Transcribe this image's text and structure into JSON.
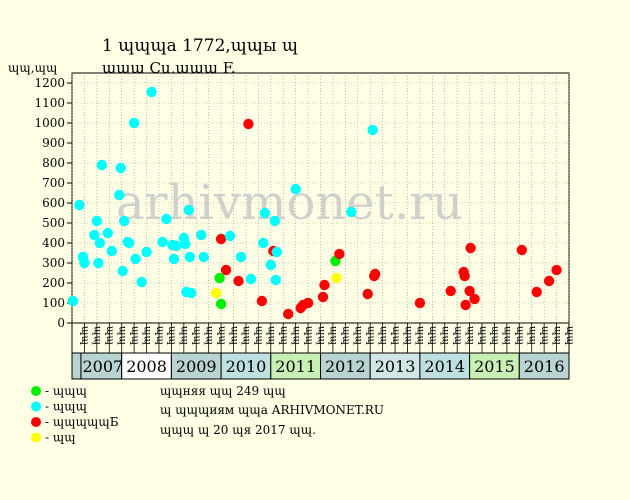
{
  "chart_data": {
    "type": "scatter",
    "title_line1": "1 ɰɰɰa 1772,ɰɰы ɰ",
    "title_line2": "ɰɰɰ Cu,ɰɰɰ F.",
    "ylabel": "ɰɰ,ɰɰ",
    "ylim": [
      0,
      1250
    ],
    "yticks": [
      0,
      100,
      200,
      300,
      400,
      500,
      600,
      700,
      800,
      900,
      1000,
      1100,
      1200
    ],
    "grid": true,
    "watermark": "arhivmonet.ru",
    "years": [
      "2007",
      "2008",
      "2009",
      "2010",
      "2011",
      "2012",
      "2013",
      "2014",
      "2015",
      "2016"
    ],
    "year_colors": [
      "#b9d2d2",
      "#ffffff",
      "#b9d2d2",
      "#bfe0e0",
      "#c8f0b4",
      "#b9d2d2",
      "#d2e6e6",
      "#bfe0e0",
      "#c8f0b4",
      "#b9d2d2"
    ],
    "sub_labels": [
      "ɰɰ",
      "ɰɰ",
      "ɰɰ",
      "ɰɰ"
    ],
    "legend": [
      {
        "color": "#00ee00",
        "label": "- ɰɰɰ"
      },
      {
        "color": "#00ffff",
        "label": "- ɰɰɰ"
      },
      {
        "color": "#ff0000",
        "label": "- ɰɰɰɰɰБ"
      },
      {
        "color": "#ffff00",
        "label": "- ɰɰ"
      }
    ],
    "info": [
      "ɰɰняя ɰɰ 249 ɰɰ",
      "ɰ ɰɰɰиям ɰɰa ARHIVMONET.RU",
      "ɰɰɰ ɰ 20 ɰя 2017 ɰɰ."
    ],
    "colors": {
      "cyan": "#00ffff",
      "red": "#ff0000",
      "green": "#00ee00",
      "yellow": "#ffff00"
    },
    "points": [
      {
        "t": 2007.02,
        "v": 110,
        "c": "cyan"
      },
      {
        "t": 2007.15,
        "v": 590,
        "c": "cyan"
      },
      {
        "t": 2007.22,
        "v": 330,
        "c": "cyan"
      },
      {
        "t": 2007.25,
        "v": 300,
        "c": "cyan"
      },
      {
        "t": 2007.45,
        "v": 440,
        "c": "cyan"
      },
      {
        "t": 2007.5,
        "v": 510,
        "c": "cyan"
      },
      {
        "t": 2007.53,
        "v": 300,
        "c": "cyan"
      },
      {
        "t": 2007.56,
        "v": 400,
        "c": "cyan"
      },
      {
        "t": 2007.6,
        "v": 790,
        "c": "cyan"
      },
      {
        "t": 2007.72,
        "v": 450,
        "c": "cyan"
      },
      {
        "t": 2007.8,
        "v": 360,
        "c": "cyan"
      },
      {
        "t": 2007.95,
        "v": 640,
        "c": "cyan"
      },
      {
        "t": 2007.98,
        "v": 775,
        "c": "cyan"
      },
      {
        "t": 2008.02,
        "v": 260,
        "c": "cyan"
      },
      {
        "t": 2008.05,
        "v": 510,
        "c": "cyan"
      },
      {
        "t": 2008.12,
        "v": 405,
        "c": "cyan"
      },
      {
        "t": 2008.15,
        "v": 400,
        "c": "cyan"
      },
      {
        "t": 2008.25,
        "v": 1000,
        "c": "cyan"
      },
      {
        "t": 2008.28,
        "v": 320,
        "c": "cyan"
      },
      {
        "t": 2008.4,
        "v": 205,
        "c": "cyan"
      },
      {
        "t": 2008.5,
        "v": 355,
        "c": "cyan"
      },
      {
        "t": 2008.6,
        "v": 1155,
        "c": "cyan"
      },
      {
        "t": 2008.82,
        "v": 405,
        "c": "cyan"
      },
      {
        "t": 2008.9,
        "v": 520,
        "c": "cyan"
      },
      {
        "t": 2009.02,
        "v": 390,
        "c": "cyan"
      },
      {
        "t": 2009.05,
        "v": 320,
        "c": "cyan"
      },
      {
        "t": 2009.1,
        "v": 385,
        "c": "cyan"
      },
      {
        "t": 2009.25,
        "v": 425,
        "c": "cyan"
      },
      {
        "t": 2009.28,
        "v": 395,
        "c": "cyan"
      },
      {
        "t": 2009.3,
        "v": 155,
        "c": "cyan"
      },
      {
        "t": 2009.35,
        "v": 565,
        "c": "cyan"
      },
      {
        "t": 2009.37,
        "v": 330,
        "c": "cyan"
      },
      {
        "t": 2009.4,
        "v": 150,
        "c": "cyan"
      },
      {
        "t": 2009.6,
        "v": 440,
        "c": "cyan"
      },
      {
        "t": 2009.65,
        "v": 330,
        "c": "cyan"
      },
      {
        "t": 2009.9,
        "v": 150,
        "c": "yellow"
      },
      {
        "t": 2009.97,
        "v": 225,
        "c": "green"
      },
      {
        "t": 2010.0,
        "v": 95,
        "c": "green"
      },
      {
        "t": 2010.0,
        "v": 420,
        "c": "red"
      },
      {
        "t": 2010.1,
        "v": 265,
        "c": "red"
      },
      {
        "t": 2010.18,
        "v": 435,
        "c": "cyan"
      },
      {
        "t": 2010.35,
        "v": 210,
        "c": "red"
      },
      {
        "t": 2010.4,
        "v": 330,
        "c": "cyan"
      },
      {
        "t": 2010.55,
        "v": 995,
        "c": "red"
      },
      {
        "t": 2010.6,
        "v": 220,
        "c": "cyan"
      },
      {
        "t": 2010.82,
        "v": 110,
        "c": "red"
      },
      {
        "t": 2010.85,
        "v": 400,
        "c": "cyan"
      },
      {
        "t": 2010.88,
        "v": 550,
        "c": "cyan"
      },
      {
        "t": 2011.0,
        "v": 290,
        "c": "cyan"
      },
      {
        "t": 2011.05,
        "v": 360,
        "c": "red"
      },
      {
        "t": 2011.08,
        "v": 510,
        "c": "cyan"
      },
      {
        "t": 2011.1,
        "v": 215,
        "c": "cyan"
      },
      {
        "t": 2011.12,
        "v": 355,
        "c": "cyan"
      },
      {
        "t": 2011.35,
        "v": 45,
        "c": "red"
      },
      {
        "t": 2011.5,
        "v": 670,
        "c": "cyan"
      },
      {
        "t": 2011.6,
        "v": 75,
        "c": "red"
      },
      {
        "t": 2011.65,
        "v": 90,
        "c": "red"
      },
      {
        "t": 2011.75,
        "v": 100,
        "c": "red"
      },
      {
        "t": 2012.05,
        "v": 130,
        "c": "red"
      },
      {
        "t": 2012.08,
        "v": 190,
        "c": "red"
      },
      {
        "t": 2012.3,
        "v": 310,
        "c": "green"
      },
      {
        "t": 2012.32,
        "v": 225,
        "c": "yellow"
      },
      {
        "t": 2012.38,
        "v": 345,
        "c": "red"
      },
      {
        "t": 2012.62,
        "v": 555,
        "c": "cyan"
      },
      {
        "t": 2012.95,
        "v": 145,
        "c": "red"
      },
      {
        "t": 2013.05,
        "v": 965,
        "c": "cyan"
      },
      {
        "t": 2013.08,
        "v": 235,
        "c": "red"
      },
      {
        "t": 2013.1,
        "v": 245,
        "c": "red"
      },
      {
        "t": 2014.0,
        "v": 100,
        "c": "red"
      },
      {
        "t": 2014.62,
        "v": 160,
        "c": "red"
      },
      {
        "t": 2014.88,
        "v": 255,
        "c": "red"
      },
      {
        "t": 2014.9,
        "v": 235,
        "c": "red"
      },
      {
        "t": 2014.92,
        "v": 90,
        "c": "red"
      },
      {
        "t": 2015.0,
        "v": 160,
        "c": "red"
      },
      {
        "t": 2015.02,
        "v": 375,
        "c": "red"
      },
      {
        "t": 2015.1,
        "v": 120,
        "c": "red"
      },
      {
        "t": 2016.05,
        "v": 365,
        "c": "red"
      },
      {
        "t": 2016.35,
        "v": 155,
        "c": "red"
      },
      {
        "t": 2016.6,
        "v": 210,
        "c": "red"
      },
      {
        "t": 2016.75,
        "v": 265,
        "c": "red"
      }
    ]
  }
}
